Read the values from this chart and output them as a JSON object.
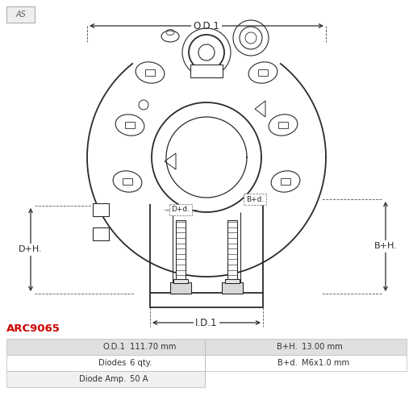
{
  "title_code": "ARC9065",
  "title_color": "#cc0000",
  "bg_color": "#ffffff",
  "table_rows": [
    [
      "O.D.1",
      "111.70 mm",
      "B+H.",
      "13.00 mm"
    ],
    [
      "Diodes",
      "6 qty.",
      "B+d.",
      "M6x1.0 mm"
    ],
    [
      "Diode Amp.",
      "50 A",
      "",
      ""
    ]
  ],
  "dim_labels": {
    "OD1": "O.D.1",
    "ID1": "I.D.1",
    "DH": "D+H.",
    "BH": "B+H.",
    "Dd": "D+d.",
    "Bd": "B+d."
  },
  "line_color": "#2a2a2a",
  "dim_color": "#2a2a2a",
  "table_header_bg": "#e0e0e0",
  "table_alt_bg": "#f0f0f0",
  "table_white_bg": "#ffffff"
}
